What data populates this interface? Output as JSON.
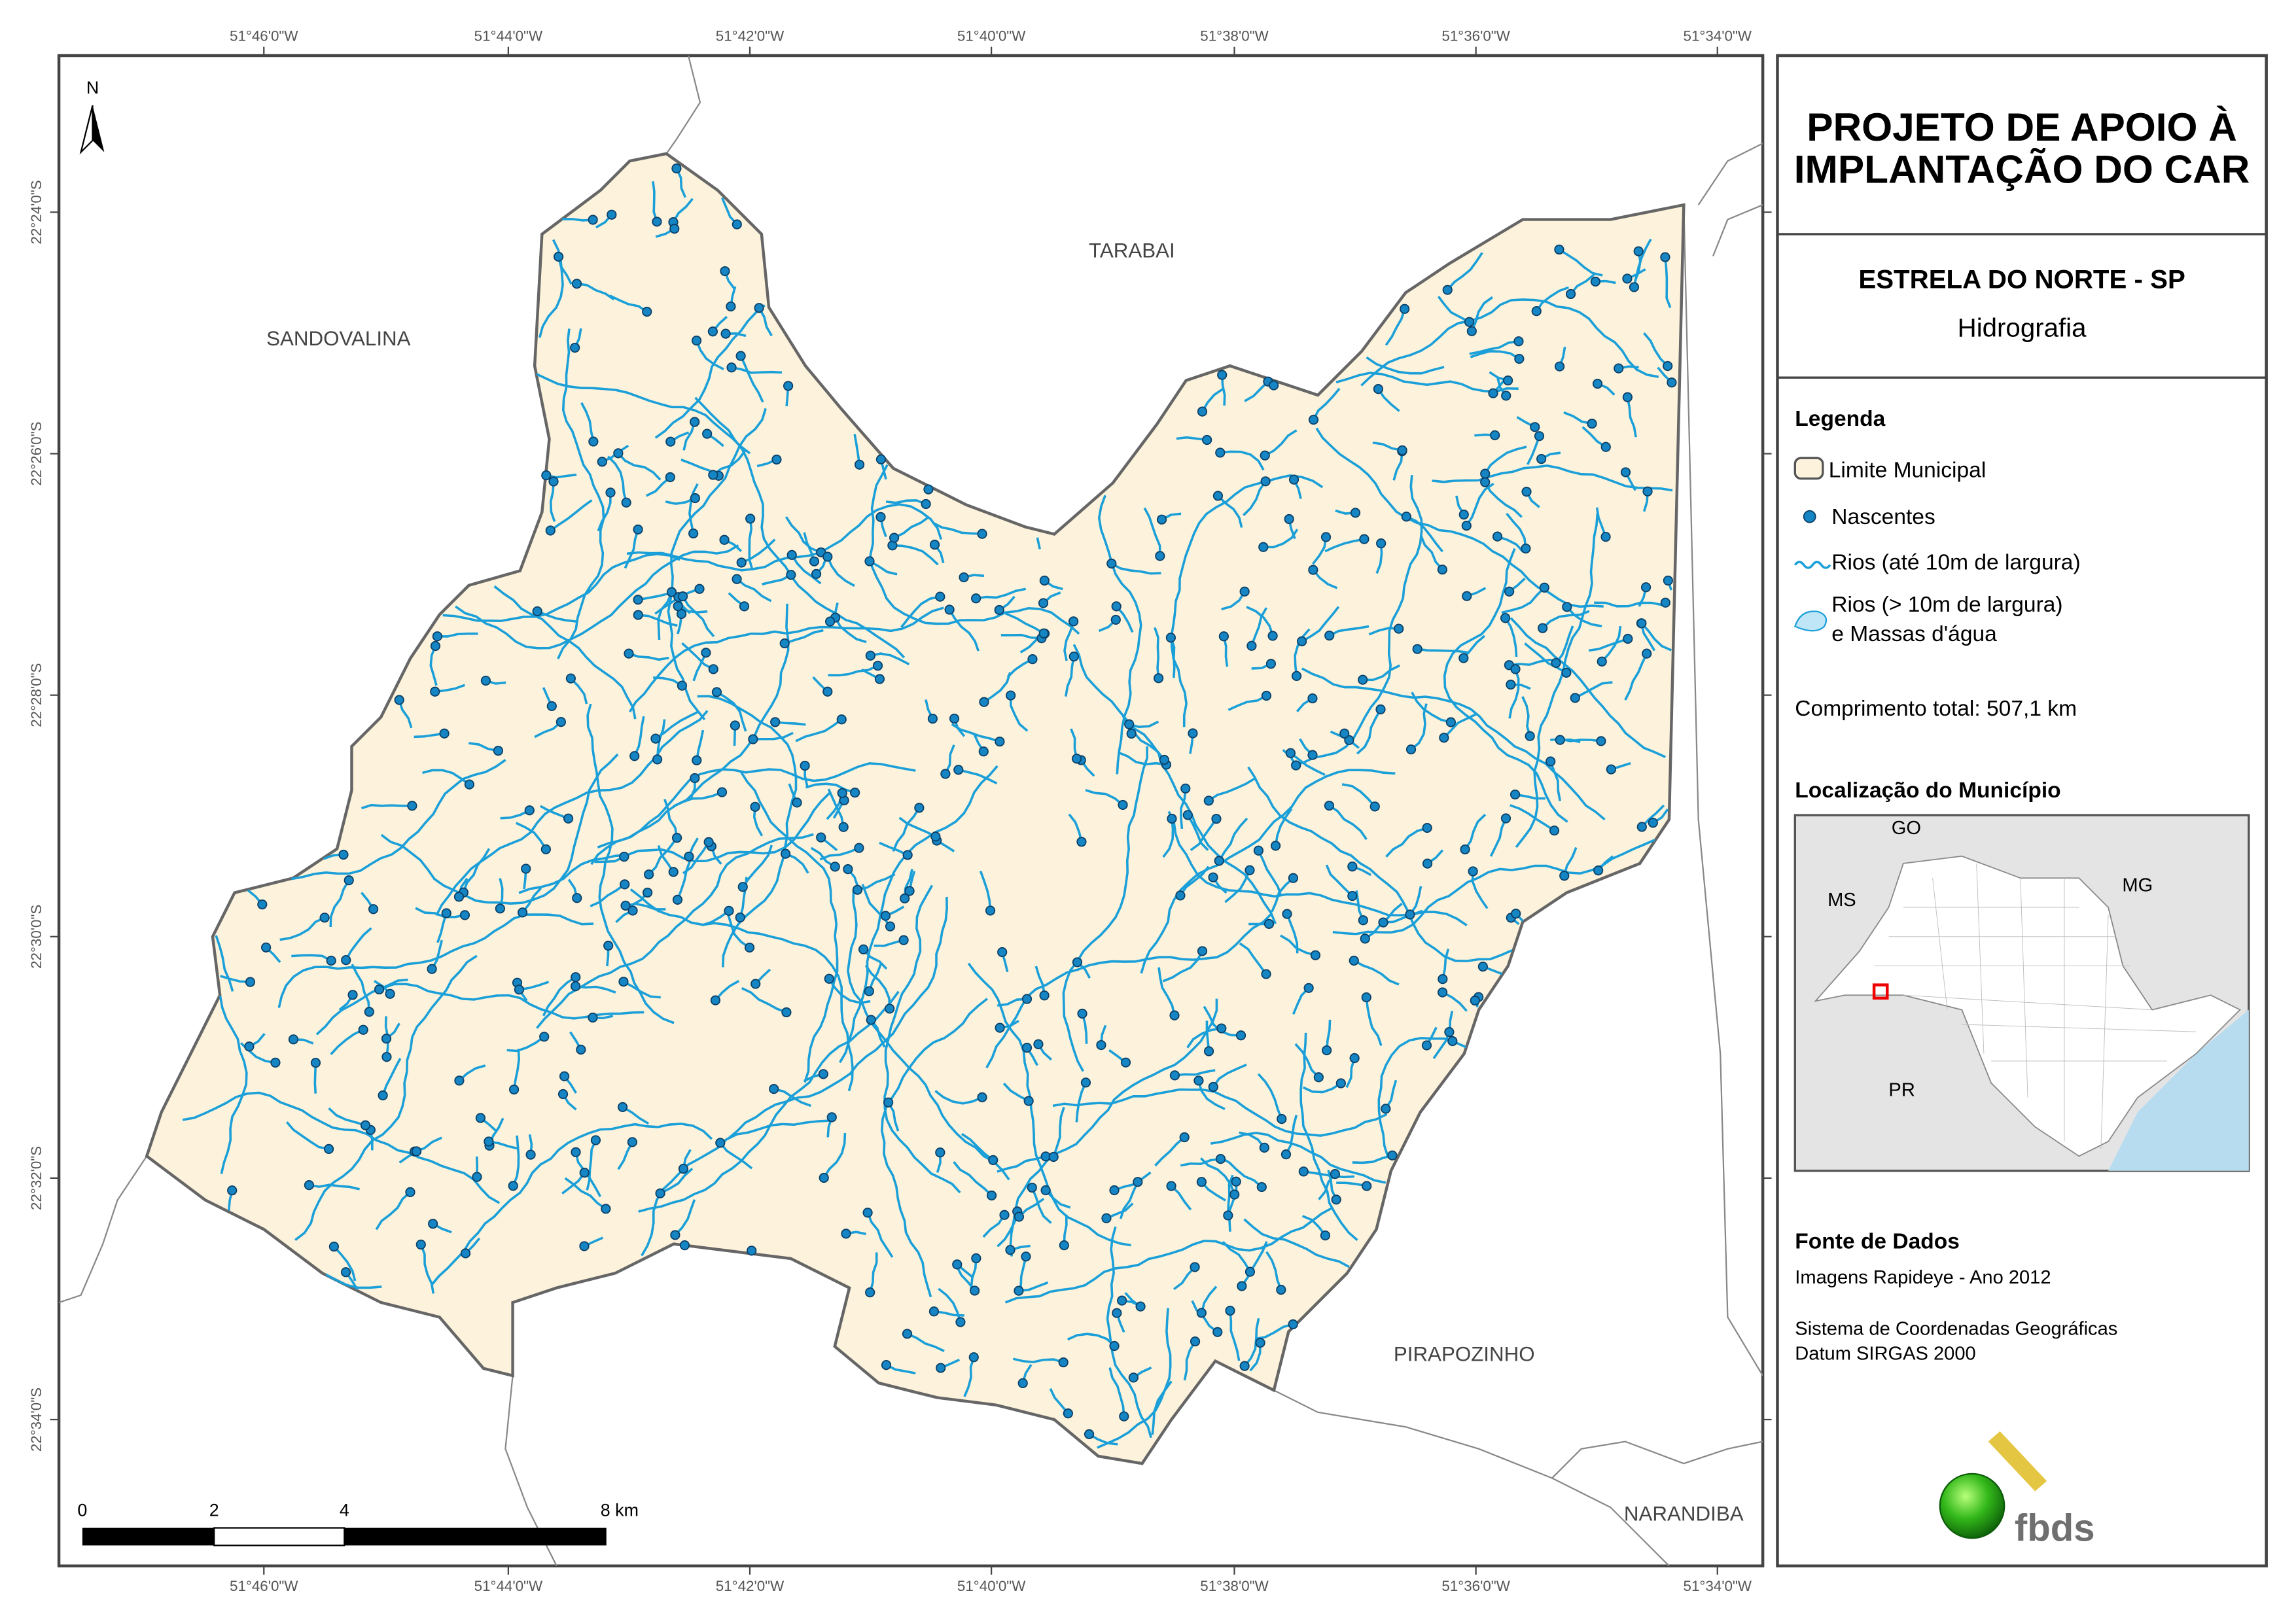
{
  "map": {
    "longitude_labels": [
      "51°46'0\"W",
      "51°44'0\"W",
      "51°42'0\"W",
      "51°40'0\"W",
      "51°38'0\"W",
      "51°36'0\"W",
      "51°34'0\"W"
    ],
    "latitude_labels": [
      "22°24'0\"S",
      "22°26'0\"S",
      "22°28'0\"S",
      "22°30'0\"S",
      "22°32'0\"S",
      "22°34'0\"S"
    ],
    "north": "N",
    "places": {
      "tarabai": "TARABAI",
      "sandovalina": "SANDOVALINA",
      "pirapozinho": "PIRAPOZINHO",
      "narandiba": "NARANDIBA"
    },
    "scale_labels": [
      "0",
      "2",
      "4",
      "8 km"
    ]
  },
  "panel": {
    "title_lines": [
      "PROJETO DE APOIO À",
      "IMPLANTAÇÃO DO CAR"
    ],
    "municipality": "ESTRELA DO NORTE - SP",
    "theme": "Hidrografia",
    "legend": {
      "title": "Legenda",
      "boundary": "Limite Municipal",
      "springs": "Nascentes",
      "small_rivers": "Rios (até 10m de largura)",
      "large_rivers": [
        "Rios (> 10m de largura)",
        "e Massas d'água"
      ]
    },
    "total_length": "Comprimento total: 507,1 km",
    "location": {
      "title": "Localização do Município",
      "labels": {
        "go": "GO",
        "ms": "MS",
        "mg": "MG",
        "pr": "PR"
      }
    },
    "sources": {
      "title": "Fonte de Dados",
      "lines": [
        "Imagens Rapideye - Ano 2012",
        "Sistema de Coordenadas Geográficas",
        "Datum SIRGAS 2000"
      ]
    },
    "logo": "fbds"
  }
}
